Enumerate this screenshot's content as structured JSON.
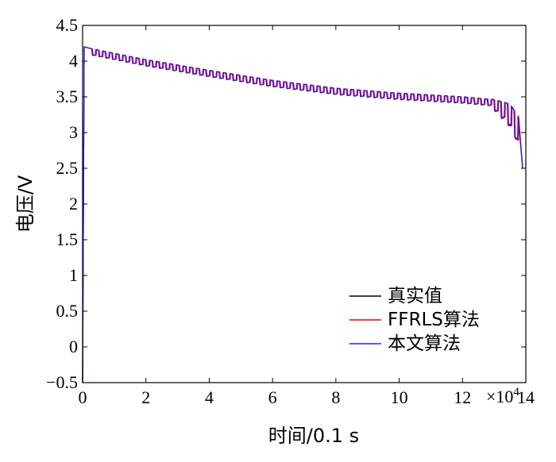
{
  "chart_data": {
    "type": "line",
    "xlabel": "时间/0.1 s",
    "ylabel": "电压/V",
    "x_exponent_label": "×10",
    "x_exponent_power": "4",
    "xlim": [
      0,
      14
    ],
    "ylim": [
      -0.5,
      4.5
    ],
    "x_ticks": [
      0,
      2,
      4,
      6,
      8,
      10,
      12,
      14
    ],
    "y_ticks": [
      -0.5,
      0,
      0.5,
      1,
      1.5,
      2,
      2.5,
      3,
      3.5,
      4,
      4.5
    ],
    "x_tick_labels": [
      "0",
      "2",
      "4",
      "6",
      "8",
      "10",
      "12",
      "14"
    ],
    "y_tick_labels": [
      "−0.5",
      "0",
      "0.5",
      "1",
      "1.5",
      "2",
      "2.5",
      "3",
      "3.5",
      "4",
      "4.5"
    ],
    "grid": false,
    "legend_position": "bottom-right",
    "pulse_count": 64,
    "series": [
      {
        "name": "真实值",
        "color": "#000000",
        "x": [
          0,
          0.05,
          0.2,
          2,
          4,
          6,
          8,
          10,
          12,
          13,
          13.5,
          13.8,
          13.9
        ],
        "values": [
          -0.5,
          4.2,
          4.18,
          4.02,
          3.87,
          3.73,
          3.62,
          3.55,
          3.5,
          3.46,
          3.4,
          3.2,
          2.5
        ]
      },
      {
        "name": "FFRLS算法",
        "color": "#ff0000",
        "x": [
          0,
          0.05,
          0.2,
          2,
          4,
          6,
          8,
          10,
          12,
          13,
          13.5,
          13.8,
          13.9
        ],
        "values": [
          -0.5,
          4.2,
          4.18,
          4.02,
          3.87,
          3.73,
          3.62,
          3.55,
          3.5,
          3.46,
          3.4,
          3.2,
          2.5
        ]
      },
      {
        "name": "本文算法",
        "color": "#2020ff",
        "x": [
          0,
          0.05,
          0.2,
          2,
          4,
          6,
          8,
          10,
          12,
          13,
          13.5,
          13.8,
          13.9
        ],
        "values": [
          -0.5,
          4.2,
          4.18,
          4.02,
          3.87,
          3.73,
          3.62,
          3.55,
          3.5,
          3.46,
          3.4,
          3.2,
          2.5
        ]
      }
    ]
  }
}
